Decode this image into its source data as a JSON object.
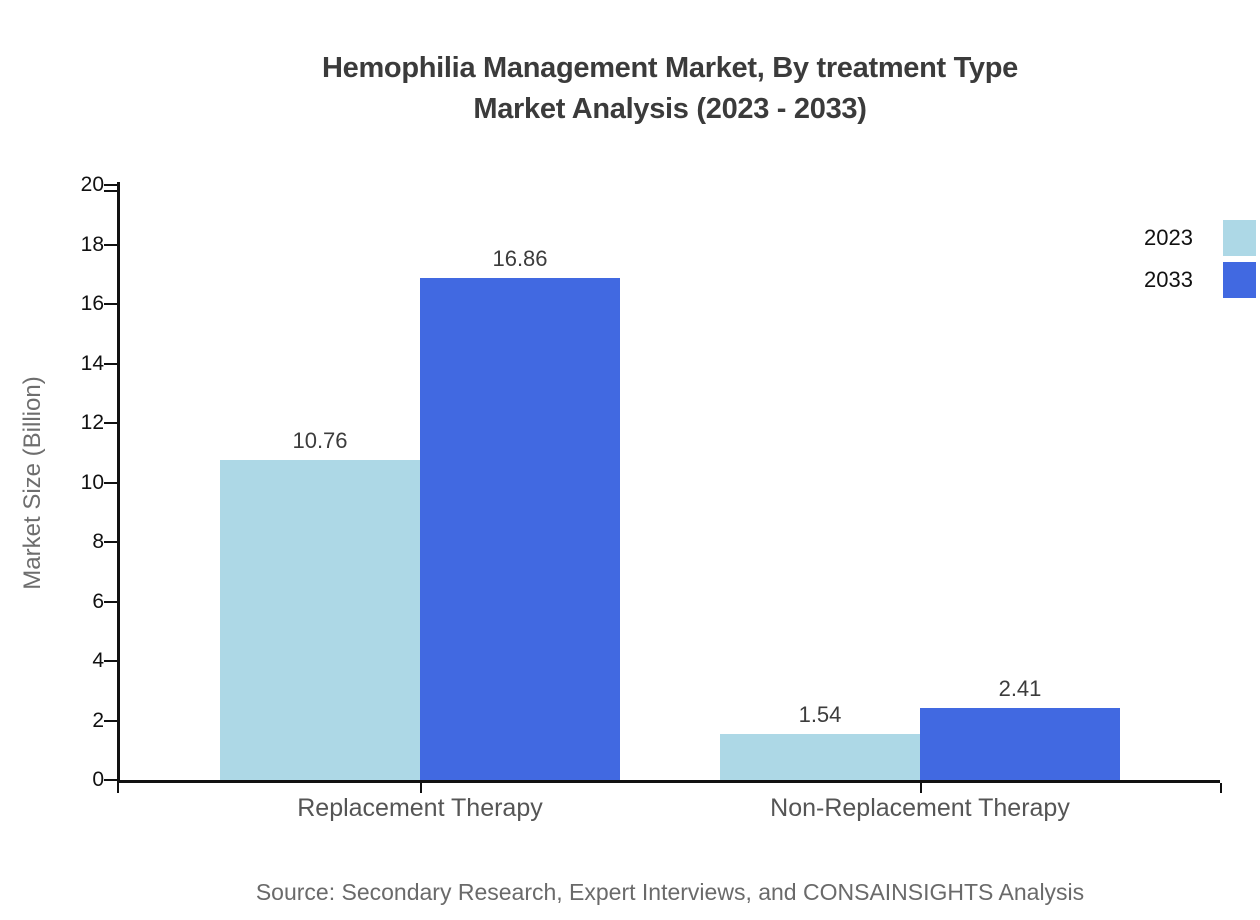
{
  "title": {
    "line1": "Hemophilia Management Market, By treatment Type",
    "line2": "Market Analysis (2023 - 2033)"
  },
  "chart_data": {
    "type": "bar",
    "categories": [
      "Replacement Therapy",
      "Non-Replacement Therapy"
    ],
    "series": [
      {
        "name": "2023",
        "color": "#ADD8E6",
        "values": [
          10.76,
          1.54
        ]
      },
      {
        "name": "2033",
        "color": "#4169E1",
        "values": [
          16.86,
          2.41
        ]
      }
    ],
    "value_labels": [
      [
        "10.76",
        "1.54"
      ],
      [
        "16.86",
        "2.41"
      ]
    ],
    "title": "Hemophilia Management Market, By treatment Type Market Analysis (2023 - 2033)",
    "xlabel": "",
    "ylabel": "Market Size (Billion)",
    "ylim": [
      0,
      20
    ],
    "y_ticks": [
      0,
      2,
      4,
      6,
      8,
      10,
      12,
      14,
      16,
      18,
      20
    ],
    "grid": false,
    "legend_position": "top-right",
    "background": "#FFFFFF",
    "axis_color": "#111111"
  },
  "legend": {
    "items": [
      {
        "label": "2023",
        "color": "#ADD8E6"
      },
      {
        "label": "2033",
        "color": "#4169E1"
      }
    ]
  },
  "source": {
    "text": "Source: Secondary Research, Expert Interviews, and CONSAINSIGHTS Analysis"
  }
}
